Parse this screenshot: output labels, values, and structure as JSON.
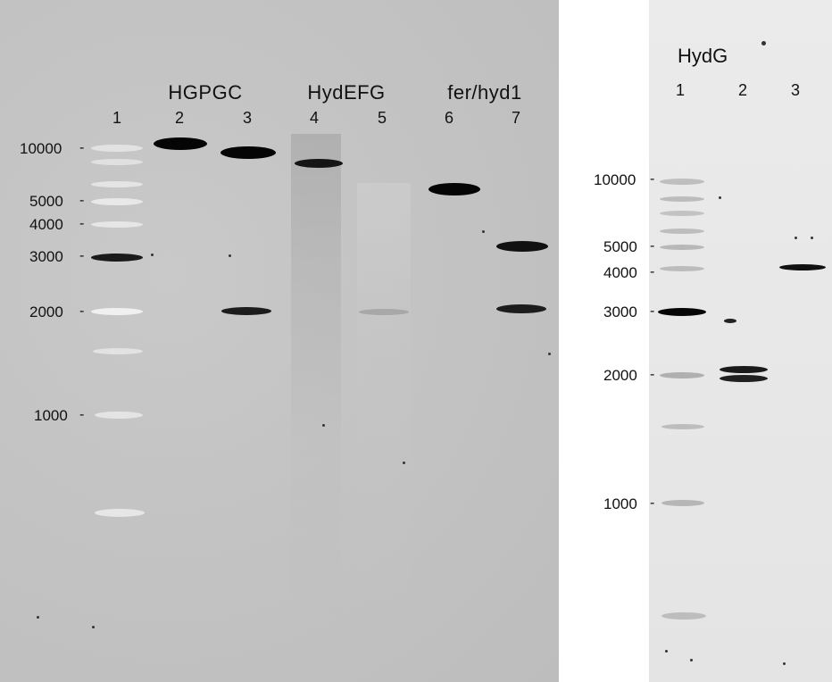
{
  "left_gel": {
    "groups": [
      "HGPGC",
      "HydEFG",
      "fer/hyd1"
    ],
    "lanes": [
      "1",
      "2",
      "3",
      "4",
      "5",
      "6",
      "7"
    ],
    "ladder_sizes": [
      "10000",
      "5000",
      "4000",
      "3000",
      "2000",
      "1000"
    ]
  },
  "right_gel": {
    "title": "HydG",
    "lanes": [
      "1",
      "2",
      "3"
    ],
    "ladder_sizes": [
      "10000",
      "5000",
      "4000",
      "3000",
      "2000",
      "1000"
    ]
  },
  "colors": {
    "left_background": "#c4c4c4",
    "right_background": "#e8e8e8",
    "band_dark": "#0a0a0a",
    "ladder_band": "#e6e6e6"
  }
}
